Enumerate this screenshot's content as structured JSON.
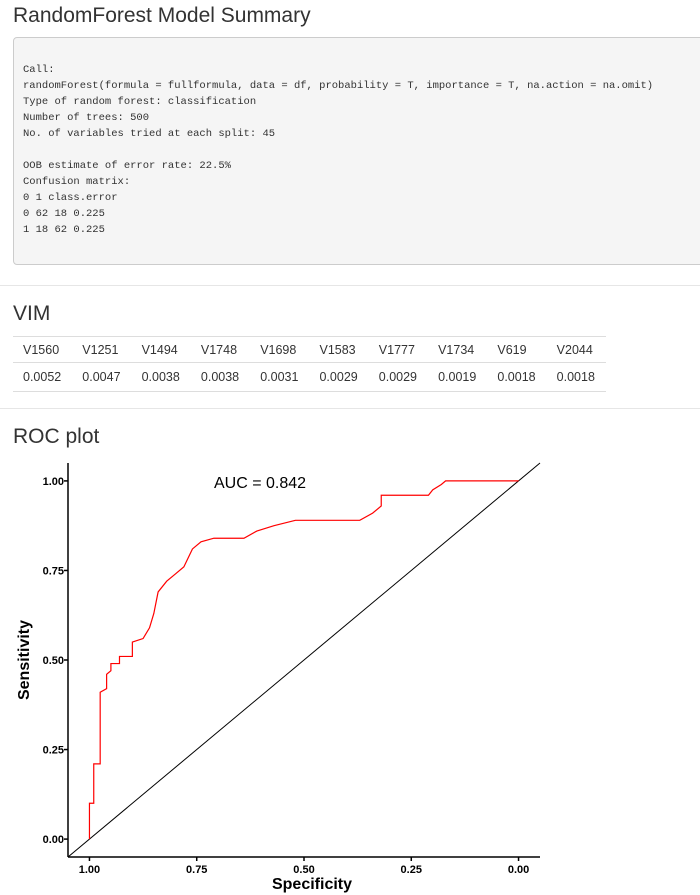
{
  "summary": {
    "title": "RandomForest Model Summary",
    "call_lines": [
      "Call:",
      "randomForest(formula = fullformula, data = df, probability = T, importance = T, na.action = na.omit)",
      "Type of random forest: classification",
      "Number of trees: 500",
      "No. of variables tried at each split: 45"
    ],
    "oob_lines": [
      "OOB estimate of error rate: 22.5%",
      "Confusion matrix:",
      "0 1 class.error",
      "0 62 18 0.225",
      "1 18 62 0.225"
    ]
  },
  "vim": {
    "title": "VIM",
    "headers": [
      "V1560",
      "V1251",
      "V1494",
      "V1748",
      "V1698",
      "V1583",
      "V1777",
      "V1734",
      "V619",
      "V2044"
    ],
    "values": [
      0.0052,
      0.0047,
      0.0038,
      0.0038,
      0.0031,
      0.0029,
      0.0029,
      0.0019,
      0.0018,
      0.0018
    ]
  },
  "roc_title": "ROC plot",
  "chart_data": {
    "type": "line",
    "annotation": "AUC = 0.842",
    "x_label": "Specificity",
    "y_label": "Sensitivity",
    "color": "#ff0000",
    "x": [
      1.0,
      1.0,
      0.99,
      0.99,
      0.975,
      0.975,
      0.96,
      0.96,
      0.95,
      0.95,
      0.93,
      0.93,
      0.9,
      0.9,
      0.875,
      0.86,
      0.85,
      0.84,
      0.82,
      0.8,
      0.78,
      0.76,
      0.74,
      0.71,
      0.64,
      0.61,
      0.57,
      0.52,
      0.37,
      0.34,
      0.32,
      0.32,
      0.21,
      0.2,
      0.18,
      0.17,
      0.0
    ],
    "values": [
      0.0,
      0.1,
      0.1,
      0.21,
      0.21,
      0.41,
      0.42,
      0.46,
      0.47,
      0.49,
      0.49,
      0.51,
      0.51,
      0.55,
      0.56,
      0.59,
      0.63,
      0.69,
      0.72,
      0.74,
      0.76,
      0.81,
      0.83,
      0.84,
      0.84,
      0.86,
      0.875,
      0.89,
      0.89,
      0.91,
      0.93,
      0.96,
      0.96,
      0.975,
      0.99,
      1.0,
      1.0
    ],
    "xlim": [
      1.05,
      -0.05
    ],
    "ylim": [
      -0.05,
      1.05
    ],
    "xticks": [
      {
        "value": 1.0,
        "label": "1.00"
      },
      {
        "value": 0.75,
        "label": "0.75"
      },
      {
        "value": 0.5,
        "label": "0.50"
      },
      {
        "value": 0.25,
        "label": "0.25"
      },
      {
        "value": 0.0,
        "label": "0.00"
      }
    ],
    "yticks": [
      {
        "value": 0.0,
        "label": "0.00"
      },
      {
        "value": 0.25,
        "label": "0.25"
      },
      {
        "value": 0.5,
        "label": "0.50"
      },
      {
        "value": 0.75,
        "label": "0.75"
      },
      {
        "value": 1.0,
        "label": "1.00"
      }
    ]
  }
}
